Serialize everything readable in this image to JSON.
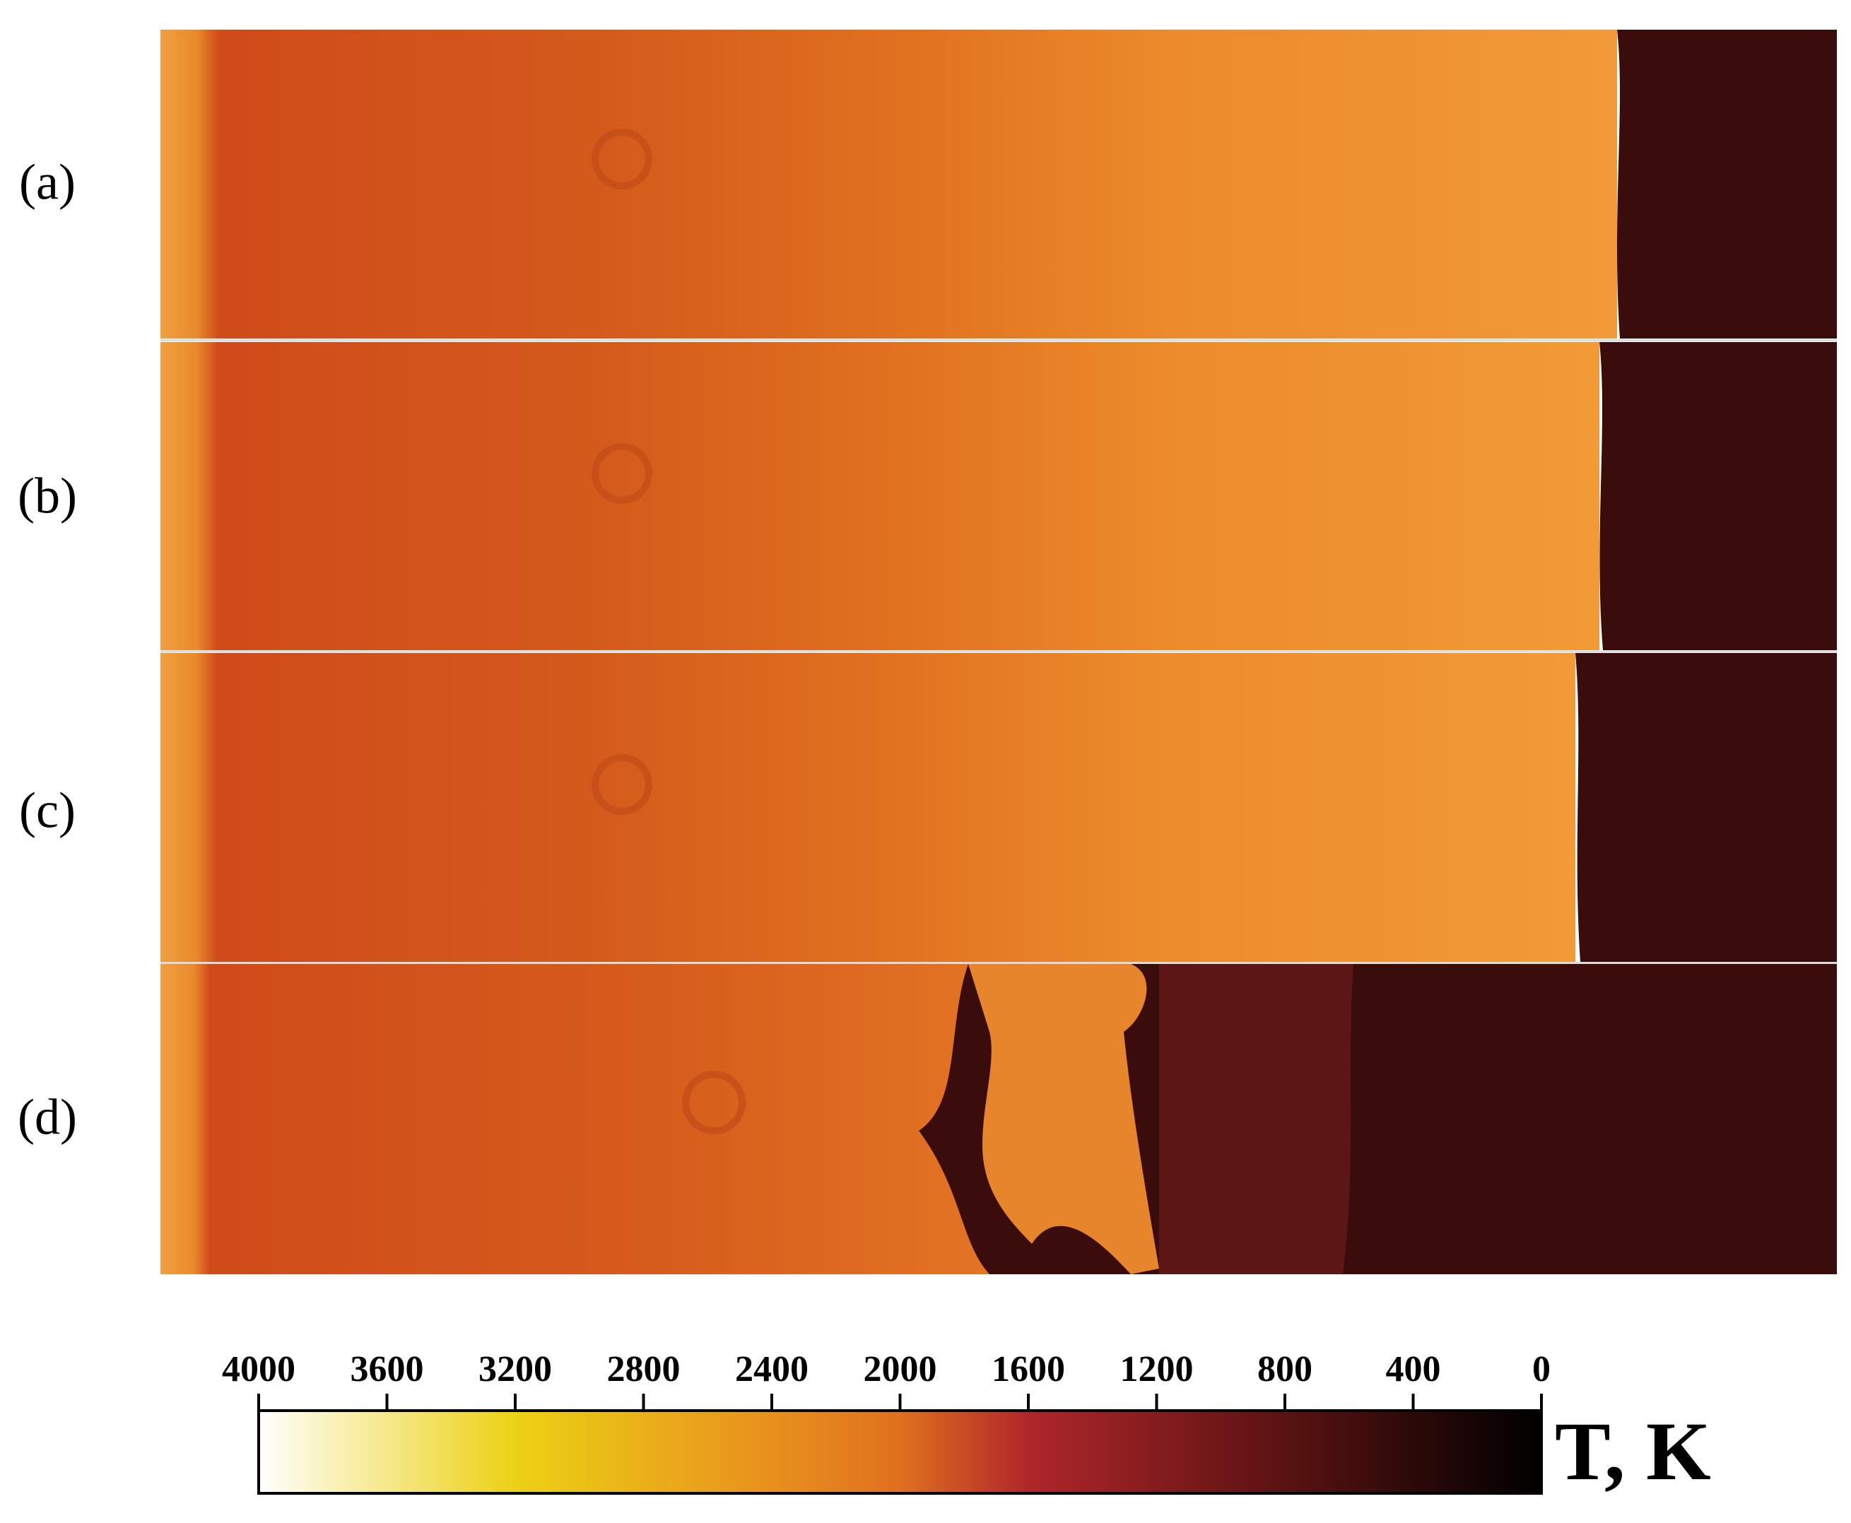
{
  "panels": [
    {
      "label": "(a)"
    },
    {
      "label": "(b)"
    },
    {
      "label": "(c)"
    },
    {
      "label": "(d)"
    }
  ],
  "colorbar": {
    "label": "T, K",
    "lim": [
      4000,
      0
    ],
    "ticks": [
      4000,
      3600,
      3200,
      2800,
      2400,
      2000,
      1600,
      1200,
      800,
      400,
      0
    ]
  }
}
